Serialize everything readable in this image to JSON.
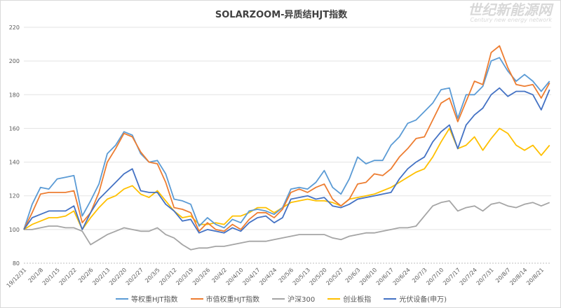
{
  "chart_data": {
    "type": "line",
    "title": "SOLARZOOM-异质结HJT指数",
    "xlabel": "",
    "ylabel": "",
    "ylim": [
      80,
      220
    ],
    "yticks": [
      80,
      100,
      120,
      140,
      160,
      180,
      200,
      220
    ],
    "grid": true,
    "legend_position": "bottom",
    "categories": [
      "19/12/31",
      "",
      "20/1/8",
      "",
      "20/1/15",
      "",
      "20/1/22",
      "",
      "20/2/6",
      "",
      "20/2/13",
      "",
      "20/2/20",
      "",
      "20/2/27",
      "",
      "20/3/5",
      "",
      "20/3/12",
      "",
      "20/3/19",
      "",
      "20/3/26",
      "",
      "20/4/2",
      "",
      "20/4/10",
      "",
      "20/4/17",
      "",
      "20/4/24",
      "",
      "20/5/6",
      "",
      "20/5/13",
      "",
      "20/5/20",
      "",
      "20/5/27",
      "",
      "20/6/3",
      "",
      "20/6/10",
      "",
      "20/6/17",
      "",
      "20/6/24",
      "",
      "20/7/3",
      "",
      "20/7/10",
      "",
      "20/7/17",
      "",
      "20/7/24",
      "",
      "20/7/31",
      "",
      "20/8/7",
      "",
      "20/8/14",
      "",
      "20/8/21",
      ""
    ],
    "series": [
      {
        "name": "等权重HJT指数",
        "color": "#5B9BD5",
        "values": [
          100,
          115,
          125,
          124,
          130,
          131,
          132,
          108,
          117,
          127,
          145,
          150,
          158,
          156,
          145,
          140,
          141,
          133,
          118,
          117,
          115,
          102,
          107,
          103,
          101,
          106,
          104,
          111,
          112,
          111,
          109,
          113,
          124,
          125,
          124,
          128,
          135,
          125,
          121,
          130,
          143,
          139,
          141,
          141,
          150,
          155,
          163,
          165,
          170,
          175,
          183,
          184,
          166,
          180,
          180,
          185,
          200,
          202,
          194,
          188,
          192,
          188,
          182,
          188
        ]
      },
      {
        "name": "市值权重HJT指数",
        "color": "#ED7D31",
        "values": [
          100,
          110,
          121,
          122,
          122,
          122,
          123,
          104,
          110,
          122,
          140,
          148,
          157,
          155,
          146,
          140,
          139,
          128,
          113,
          112,
          110,
          99,
          104,
          100,
          99,
          103,
          100,
          106,
          110,
          110,
          107,
          112,
          122,
          124,
          122,
          125,
          127,
          118,
          114,
          118,
          127,
          128,
          133,
          132,
          136,
          143,
          148,
          154,
          155,
          165,
          175,
          178,
          164,
          176,
          188,
          186,
          205,
          209,
          196,
          186,
          185,
          186,
          178,
          187
        ]
      },
      {
        "name": "沪深300",
        "color": "#A5A5A5",
        "values": [
          100,
          100,
          101,
          102,
          102,
          101,
          101,
          99,
          91,
          94,
          97,
          99,
          101,
          100,
          99,
          99,
          101,
          97,
          95,
          91,
          88,
          89,
          89,
          90,
          90,
          91,
          92,
          93,
          93,
          93,
          94,
          95,
          96,
          97,
          97,
          97,
          97,
          95,
          94,
          96,
          97,
          98,
          98,
          99,
          100,
          101,
          101,
          102,
          108,
          114,
          116,
          117,
          111,
          113,
          114,
          111,
          115,
          116,
          114,
          113,
          115,
          116,
          114,
          116
        ]
      },
      {
        "name": "创业板指",
        "color": "#FFC000",
        "values": [
          100,
          103,
          105,
          107,
          107,
          108,
          111,
          100,
          107,
          113,
          118,
          120,
          124,
          126,
          121,
          119,
          123,
          117,
          111,
          107,
          108,
          103,
          103,
          104,
          103,
          108,
          108,
          110,
          113,
          113,
          110,
          113,
          116,
          117,
          118,
          117,
          117,
          116,
          114,
          118,
          119,
          120,
          121,
          123,
          125,
          128,
          131,
          134,
          136,
          143,
          152,
          160,
          148,
          150,
          155,
          147,
          154,
          160,
          157,
          150,
          147,
          150,
          144,
          150
        ]
      },
      {
        "name": "光伏设备(申万)",
        "color": "#4472C4",
        "values": [
          100,
          107,
          109,
          111,
          111,
          111,
          114,
          100,
          110,
          118,
          123,
          128,
          133,
          136,
          123,
          122,
          122,
          115,
          111,
          105,
          106,
          98,
          100,
          99,
          98,
          101,
          99,
          104,
          107,
          108,
          104,
          107,
          118,
          119,
          120,
          118,
          119,
          114,
          113,
          115,
          118,
          119,
          120,
          121,
          122,
          130,
          136,
          140,
          143,
          152,
          158,
          162,
          148,
          162,
          168,
          172,
          180,
          184,
          179,
          182,
          182,
          180,
          171,
          183
        ]
      }
    ]
  },
  "watermark": {
    "cn": "世纪新能源网",
    "en": "Century new energy network"
  }
}
